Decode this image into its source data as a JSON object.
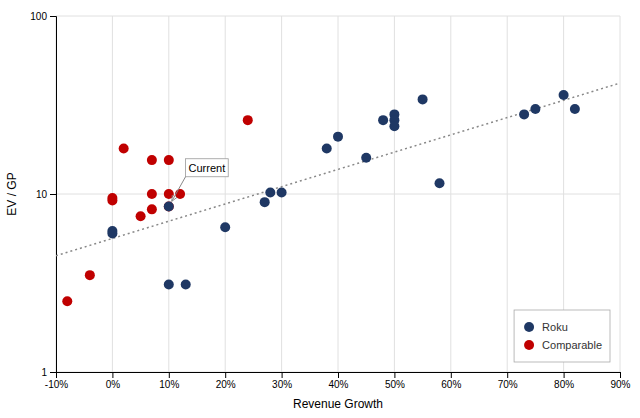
{
  "chart_data": {
    "type": "scatter",
    "x_label": "Revenue Growth",
    "y_label": "EV / GP",
    "log": "y",
    "grid": true,
    "legend": "lower right",
    "xlim": [
      -0.1,
      0.9
    ],
    "ylim": [
      1,
      100
    ],
    "xticks": [
      {
        "value": -0.1,
        "label": "-10%"
      },
      {
        "value": 0.0,
        "label": "0%"
      },
      {
        "value": 0.1,
        "label": "10%"
      },
      {
        "value": 0.2,
        "label": "20%"
      },
      {
        "value": 0.3,
        "label": "30%"
      },
      {
        "value": 0.4,
        "label": "40%"
      },
      {
        "value": 0.5,
        "label": "50%"
      },
      {
        "value": 0.6,
        "label": "60%"
      },
      {
        "value": 0.7,
        "label": "70%"
      },
      {
        "value": 0.8,
        "label": "80%"
      },
      {
        "value": 0.9,
        "label": "90%"
      }
    ],
    "yticks": [
      1,
      10,
      100
    ],
    "series": [
      {
        "name": "Roku",
        "color": "#1F3864",
        "marker": "circle",
        "x": [
          0.0,
          0.0,
          0.1,
          0.1,
          0.13,
          0.2,
          0.27,
          0.28,
          0.3,
          0.38,
          0.4,
          0.45,
          0.48,
          0.5,
          0.5,
          0.5,
          0.55,
          0.58,
          0.73,
          0.75,
          0.8,
          0.82
        ],
        "values": [
          6.2,
          6.0,
          8.5,
          3.1,
          3.1,
          6.5,
          9.0,
          10.2,
          10.2,
          18.0,
          21.0,
          16.0,
          26.0,
          28.0,
          26.0,
          24.0,
          34.0,
          11.5,
          28.0,
          30.0,
          36.0,
          30.0
        ]
      },
      {
        "name": "Comparable",
        "color": "#C00000",
        "marker": "circle",
        "x": [
          -0.08,
          -0.04,
          0.0,
          0.0,
          0.02,
          0.05,
          0.07,
          0.07,
          0.07,
          0.1,
          0.1,
          0.1,
          0.12,
          0.24
        ],
        "values": [
          2.5,
          3.5,
          9.5,
          9.2,
          18.0,
          7.5,
          15.5,
          8.2,
          10.0,
          15.5,
          8.5,
          10.0,
          10.0,
          26.0
        ]
      },
      {
        "type": "line",
        "line_style": "dotted",
        "color": "#888888",
        "x": [
          -0.1,
          0.9
        ],
        "values": [
          4.5,
          42.0
        ]
      }
    ],
    "annotations": [
      {
        "text": "Current",
        "x": 0.1,
        "y": 8.5,
        "text_x": 0.135,
        "text_y": 12.5
      }
    ]
  }
}
